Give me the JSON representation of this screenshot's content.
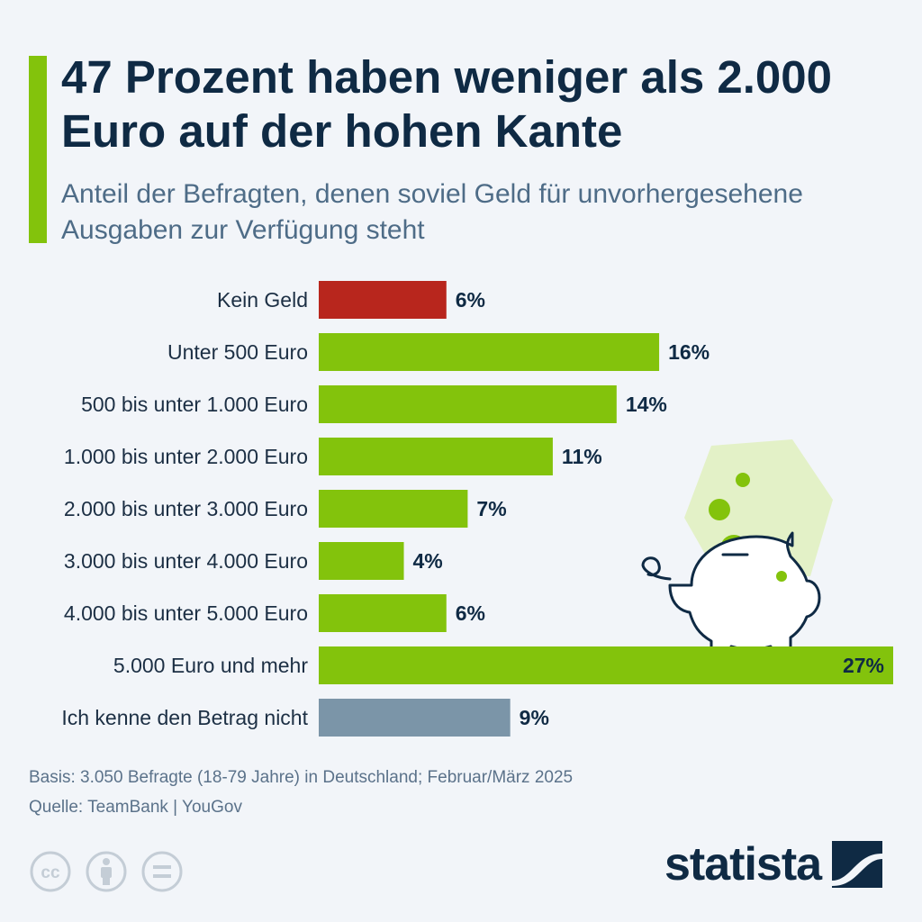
{
  "header": {
    "title": "47 Prozent haben weniger als 2.000 Euro auf der hohen Kante",
    "subtitle": "Anteil der Befragten, denen soviel Geld für unvorhergesehene Ausgaben zur Verfügung steht"
  },
  "chart_data": {
    "type": "bar",
    "orientation": "horizontal",
    "title": "47 Prozent haben weniger als 2.000 Euro auf der hohen Kante",
    "subtitle": "Anteil der Befragten, denen soviel Geld für unvorhergesehene Ausgaben zur Verfügung steht",
    "unit": "%",
    "categories": [
      "Kein Geld",
      "Unter 500 Euro",
      "500 bis unter 1.000 Euro",
      "1.000 bis unter 2.000 Euro",
      "2.000 bis unter 3.000 Euro",
      "3.000 bis unter 4.000 Euro",
      "4.000 bis unter 5.000 Euro",
      "5.000 Euro und mehr",
      "Ich kenne den Betrag nicht"
    ],
    "values": [
      6,
      16,
      14,
      11,
      7,
      4,
      6,
      27,
      9
    ],
    "value_labels": [
      "6%",
      "16%",
      "14%",
      "11%",
      "7%",
      "4%",
      "6%",
      "27%",
      "9%"
    ],
    "bar_colors": [
      "#b8261d",
      "#83c30c",
      "#83c30c",
      "#83c30c",
      "#83c30c",
      "#83c30c",
      "#83c30c",
      "#83c30c",
      "#7b95a8"
    ],
    "xlim": [
      0,
      27
    ],
    "grid": false,
    "legend": "none"
  },
  "footer": {
    "basis": "Basis: 3.050 Befragte (18-79 Jahre) in Deutschland; Februar/März 2025",
    "source": "Quelle: TeamBank | YouGov",
    "brand": "statista"
  },
  "icons": [
    "cc-license-icon",
    "attribution-icon",
    "no-derivatives-icon",
    "piggy-bank-icon",
    "statista-logo-icon"
  ],
  "colors": {
    "accent": "#83c30c",
    "negative": "#b8261d",
    "neutral": "#7b95a8",
    "text": "#0f2a44",
    "background": "#f2f5f9"
  }
}
